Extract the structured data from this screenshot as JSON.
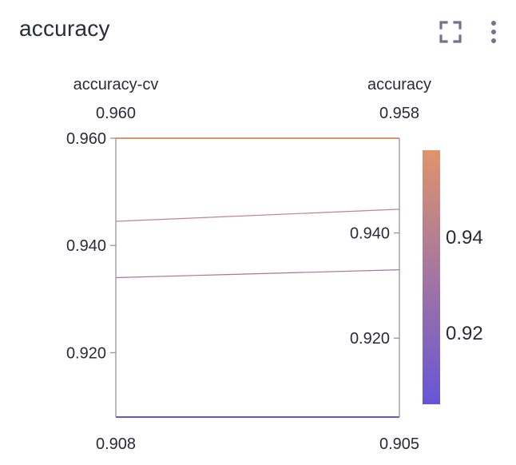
{
  "panel": {
    "title": "accuracy",
    "icons": [
      "fullscreen-icon",
      "more-vertical-icon"
    ]
  },
  "colors": {
    "accent_high": "#e0946c",
    "accent_low": "#6656d6",
    "icon": "#7a6f8f",
    "axis": "#9a90a6"
  },
  "chart_data": {
    "type": "parallel-coordinates",
    "dimensions": [
      {
        "label": "accuracy-cv",
        "top_value_label": "0.960",
        "bottom_value_label": "0.908",
        "range": [
          0.908,
          0.96
        ],
        "ticks": [
          0.96,
          0.94,
          0.92
        ],
        "tick_labels": [
          "0.960",
          "0.940",
          "0.920"
        ],
        "tick_side": "left"
      },
      {
        "label": "accuracy",
        "top_value_label": "0.958",
        "bottom_value_label": "0.905",
        "range": [
          0.905,
          0.958
        ],
        "ticks": [
          0.94,
          0.92
        ],
        "tick_labels": [
          "0.940",
          "0.920"
        ],
        "tick_side": "left"
      }
    ],
    "lines": [
      {
        "values": [
          0.96,
          0.958
        ],
        "color_value": 0.958
      },
      {
        "values": [
          0.9445,
          0.9445
        ],
        "color_value": 0.9445
      },
      {
        "values": [
          0.934,
          0.933
        ],
        "color_value": 0.933
      },
      {
        "values": [
          0.908,
          0.905
        ],
        "color_value": 0.905
      }
    ],
    "colorscale": {
      "range": [
        0.905,
        0.958
      ],
      "ticks": [
        0.94,
        0.92
      ],
      "tick_labels": [
        "0.94",
        "0.92"
      ],
      "low_color": "#6656d6",
      "high_color": "#e0946c"
    }
  }
}
